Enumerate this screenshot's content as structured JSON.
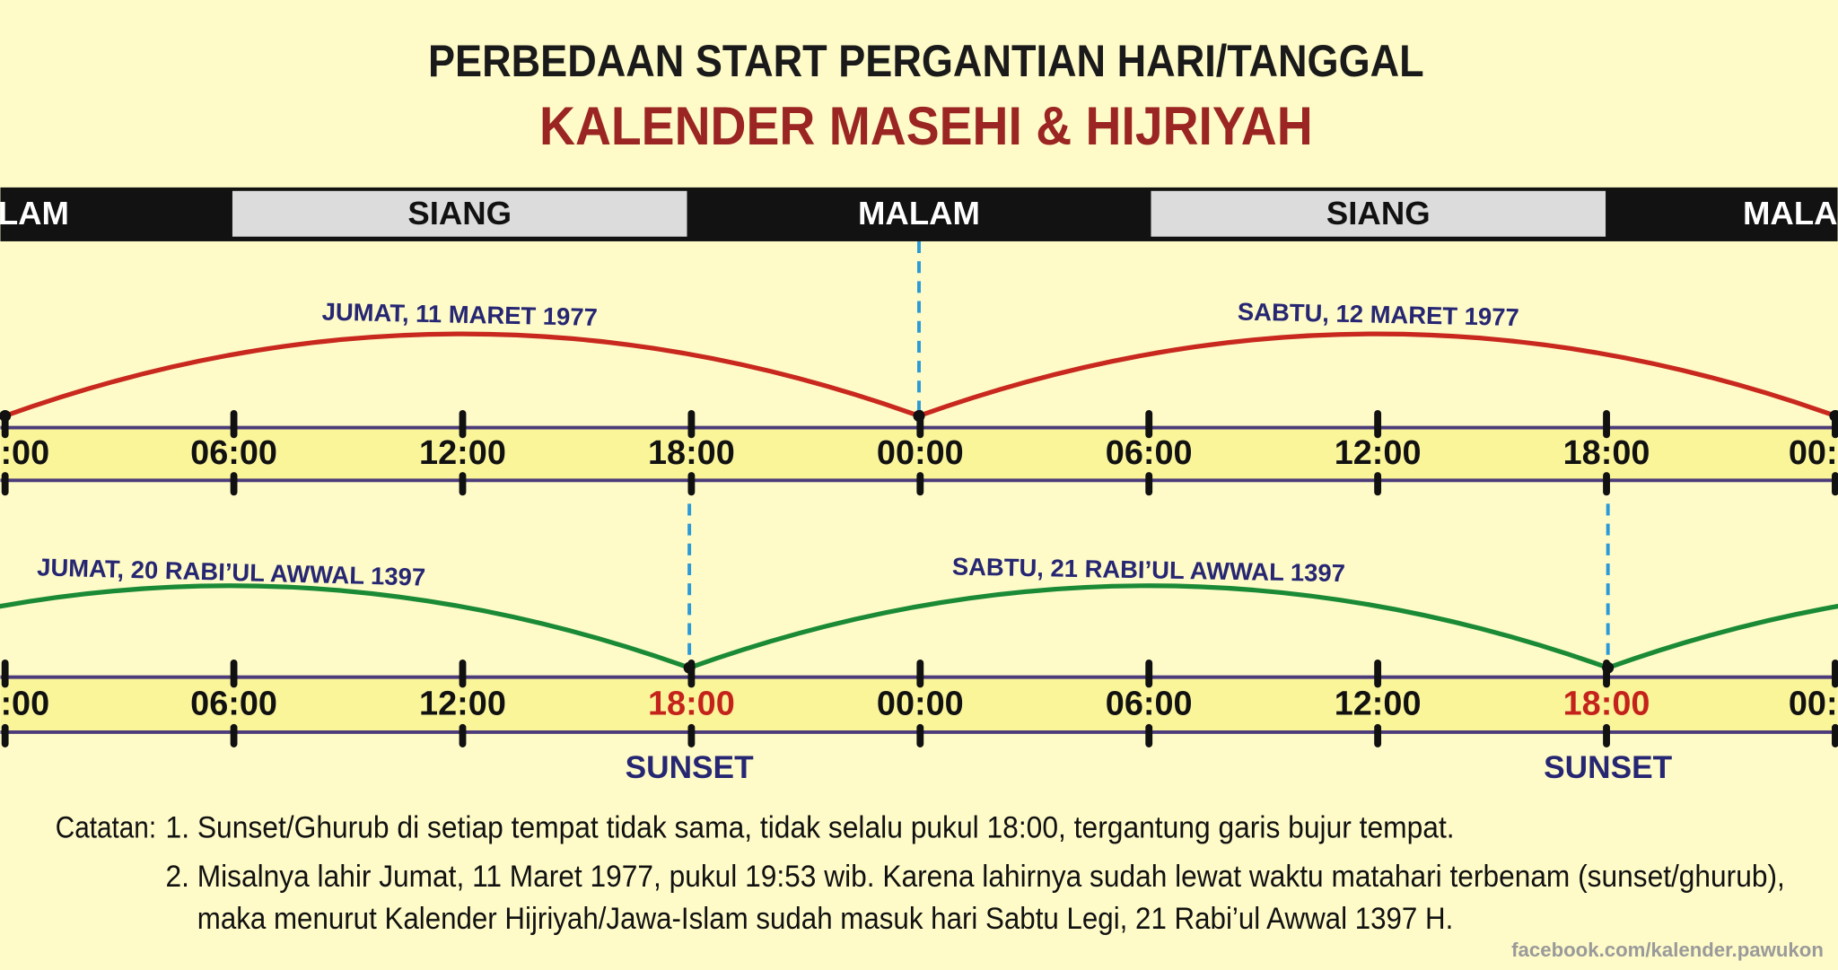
{
  "header": {
    "title": "PERBEDAAN START PERGANTIAN HARI/TANGGAL",
    "subtitle": "KALENDER MASEHI & HIJRIYAH"
  },
  "period_bar": [
    "LAM",
    "SIANG",
    "MALAM",
    "SIANG",
    "MALA"
  ],
  "masehi": {
    "dates": [
      "JUMAT, 11 MARET 1977",
      "SABTU, 12 MARET 1977"
    ],
    "times": [
      ":00",
      "06:00",
      "12:00",
      "18:00",
      "00:00",
      "06:00",
      "12:00",
      "18:00",
      "00:"
    ]
  },
  "hijriyah": {
    "dates": [
      "JUMAT, 20 RABI’UL AWWAL 1397",
      "SABTU, 21 RABI’UL AWWAL 1397"
    ],
    "times": [
      ":00",
      "06:00",
      "12:00",
      "18:00",
      "00:00",
      "06:00",
      "12:00",
      "18:00",
      "00:"
    ],
    "markers": [
      "SUNSET",
      "SUNSET"
    ]
  },
  "notes": {
    "label": "Catatan:",
    "lines": [
      "1. Sunset/Ghurub di setiap tempat tidak sama, tidak selalu pukul 18:00, tergantung garis bujur tempat.",
      "2. Misalnya lahir Jumat, 11 Maret 1977, pukul 19:53 wib. Karena lahirnya sudah lewat waktu matahari terbenam (sunset/ghurub),",
      "maka menurut Kalender Hijriyah/Jawa-Islam sudah masuk hari Sabtu Legi, 21 Rabi’ul Awwal 1397 H."
    ]
  },
  "footer": "facebook.com/kalender.pawukon"
}
